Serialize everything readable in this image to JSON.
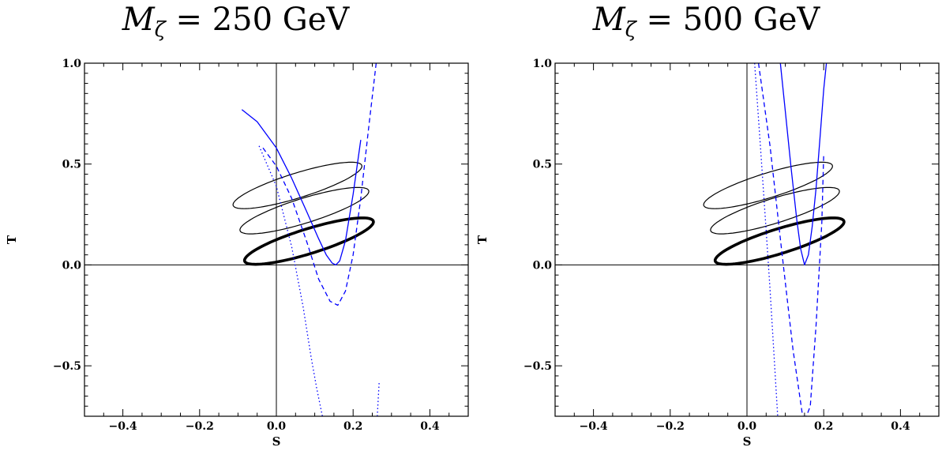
{
  "chart_data": [
    {
      "type": "line",
      "title_var": "M",
      "title_sub": "ζ",
      "title_rest": " = 250 GeV",
      "xlabel": "S",
      "ylabel": "T",
      "xlim": [
        -0.5,
        0.5
      ],
      "ylim": [
        -0.75,
        1.0
      ],
      "x_ticks": [
        "−0.4",
        "−0.2",
        "0.0",
        "0.2",
        "0.4"
      ],
      "y_ticks": [
        "−0.5",
        "0.0",
        "0.5",
        "1.0"
      ],
      "x_tick_values": [
        -0.4,
        -0.2,
        0.0,
        0.2,
        0.4
      ],
      "y_tick_values": [
        -0.5,
        0.0,
        0.5,
        1.0
      ],
      "axis_color": "#000000",
      "ellipses": [
        {
          "cx": 0.055,
          "cy": 0.394,
          "rx": 0.196,
          "ry": 0.055,
          "angle": 32.5,
          "weight": "thin",
          "color": "#000000"
        },
        {
          "cx": 0.073,
          "cy": 0.269,
          "rx": 0.196,
          "ry": 0.055,
          "angle": 32.5,
          "weight": "thin",
          "color": "#000000"
        },
        {
          "cx": 0.085,
          "cy": 0.118,
          "rx": 0.196,
          "ry": 0.055,
          "angle": 32.5,
          "weight": "thick",
          "color": "#000000"
        }
      ],
      "series": [
        {
          "style": "solid",
          "color": "#0000ff",
          "x": [
            -0.09,
            -0.05,
            0.0,
            0.04,
            0.08,
            0.11,
            0.13,
            0.145,
            0.155,
            0.165,
            0.18,
            0.2,
            0.22
          ],
          "y": [
            0.77,
            0.71,
            0.58,
            0.43,
            0.26,
            0.13,
            0.05,
            0.01,
            0.0,
            0.02,
            0.12,
            0.35,
            0.62
          ]
        },
        {
          "style": "dashed",
          "color": "#0000ff",
          "x": [
            -0.035,
            0.0,
            0.04,
            0.08,
            0.11,
            0.14,
            0.16,
            0.18,
            0.2,
            0.22,
            0.24,
            0.26
          ],
          "y": [
            0.58,
            0.49,
            0.33,
            0.11,
            -0.07,
            -0.18,
            -0.2,
            -0.13,
            0.05,
            0.33,
            0.67,
            1.0
          ]
        },
        {
          "style": "dotted",
          "color": "#0000ff",
          "x": [
            -0.045,
            0.0,
            0.04,
            0.07,
            0.09,
            0.105,
            0.12
          ],
          "y": [
            0.59,
            0.39,
            0.09,
            -0.21,
            -0.45,
            -0.61,
            -0.75
          ]
        },
        {
          "style": "dotted",
          "color": "#0000ff",
          "x": [
            0.263,
            0.268
          ],
          "y": [
            -0.75,
            -0.58
          ]
        }
      ]
    },
    {
      "type": "line",
      "title_var": "M",
      "title_sub": "ζ",
      "title_rest": " = 500 GeV",
      "xlabel": "S",
      "ylabel": "T",
      "xlim": [
        -0.5,
        0.5
      ],
      "ylim": [
        -0.75,
        1.0
      ],
      "x_ticks": [
        "−0.4",
        "−0.2",
        "0.0",
        "0.2",
        "0.4"
      ],
      "y_ticks": [
        "−0.5",
        "0.0",
        "0.5",
        "1.0"
      ],
      "x_tick_values": [
        -0.4,
        -0.2,
        0.0,
        0.2,
        0.4
      ],
      "y_tick_values": [
        -0.5,
        0.0,
        0.5,
        1.0
      ],
      "axis_color": "#000000",
      "ellipses": [
        {
          "cx": 0.055,
          "cy": 0.394,
          "rx": 0.196,
          "ry": 0.055,
          "angle": 32.5,
          "weight": "thin",
          "color": "#000000"
        },
        {
          "cx": 0.073,
          "cy": 0.269,
          "rx": 0.196,
          "ry": 0.055,
          "angle": 32.5,
          "weight": "thin",
          "color": "#000000"
        },
        {
          "cx": 0.085,
          "cy": 0.118,
          "rx": 0.196,
          "ry": 0.055,
          "angle": 32.5,
          "weight": "thick",
          "color": "#000000"
        }
      ],
      "series": [
        {
          "style": "solid",
          "color": "#0000ff",
          "x": [
            0.087,
            0.1,
            0.115,
            0.13,
            0.14,
            0.15,
            0.16,
            0.17,
            0.18,
            0.19,
            0.2,
            0.207
          ],
          "y": [
            1.0,
            0.76,
            0.48,
            0.22,
            0.08,
            0.0,
            0.05,
            0.19,
            0.38,
            0.62,
            0.87,
            1.0
          ]
        },
        {
          "style": "dashed",
          "color": "#0000ff",
          "x": [
            0.03,
            0.06,
            0.09,
            0.12,
            0.145,
            0.155,
            0.165,
            0.18,
            0.195,
            0.2
          ],
          "y": [
            1.0,
            0.59,
            0.08,
            -0.42,
            -0.75,
            -0.75,
            -0.7,
            -0.3,
            0.21,
            0.55
          ]
        },
        {
          "style": "dotted",
          "color": "#0000ff",
          "x": [
            0.02,
            0.035,
            0.05,
            0.06,
            0.07,
            0.08
          ],
          "y": [
            1.0,
            0.59,
            0.17,
            -0.12,
            -0.43,
            -0.75
          ]
        }
      ]
    }
  ]
}
